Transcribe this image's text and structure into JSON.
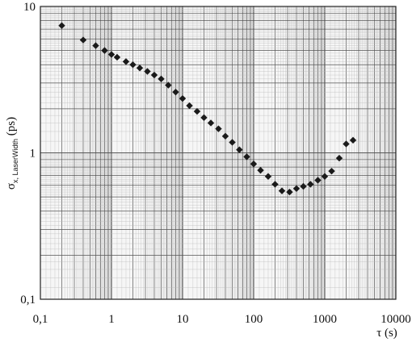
{
  "chart_data": {
    "type": "scatter",
    "title": "",
    "xlabel": "τ (s)",
    "ylabel": {
      "main": "σ",
      "subscript": "x, LaserWidth",
      "unit": " (ps)"
    },
    "xscale": "log",
    "yscale": "log",
    "xlim": [
      0.1,
      10000
    ],
    "ylim": [
      0.1,
      10
    ],
    "grid": true,
    "legend": "none",
    "x_tick_labels": [
      "0,1",
      "1",
      "10",
      "100",
      "1000",
      "10000"
    ],
    "y_tick_labels": [
      "0,1",
      "1",
      "10"
    ],
    "marker": "diamond",
    "colors": {
      "marker": "#1a1a1a",
      "grid_minor": "#b8b8b8",
      "grid_major": "#555555",
      "axis": "#222222"
    },
    "series": [
      {
        "x": [
          0.2,
          0.4,
          0.6,
          0.8,
          1.0,
          1.2,
          1.6,
          2.0,
          2.5,
          3.2,
          4.0,
          5.0,
          6.3,
          8.0,
          10,
          12.5,
          16,
          20,
          25,
          32,
          40,
          50,
          63,
          80,
          100,
          125,
          160,
          200,
          250,
          320,
          400,
          500,
          630,
          800,
          1000,
          1250,
          1600,
          2000,
          2500
        ],
        "y": [
          7.4,
          5.9,
          5.4,
          5.0,
          4.7,
          4.5,
          4.2,
          4.0,
          3.8,
          3.6,
          3.4,
          3.2,
          2.9,
          2.6,
          2.35,
          2.1,
          1.92,
          1.74,
          1.6,
          1.46,
          1.3,
          1.18,
          1.05,
          0.94,
          0.84,
          0.76,
          0.69,
          0.61,
          0.55,
          0.54,
          0.57,
          0.59,
          0.61,
          0.65,
          0.69,
          0.75,
          0.92,
          1.15,
          1.22
        ]
      }
    ]
  }
}
